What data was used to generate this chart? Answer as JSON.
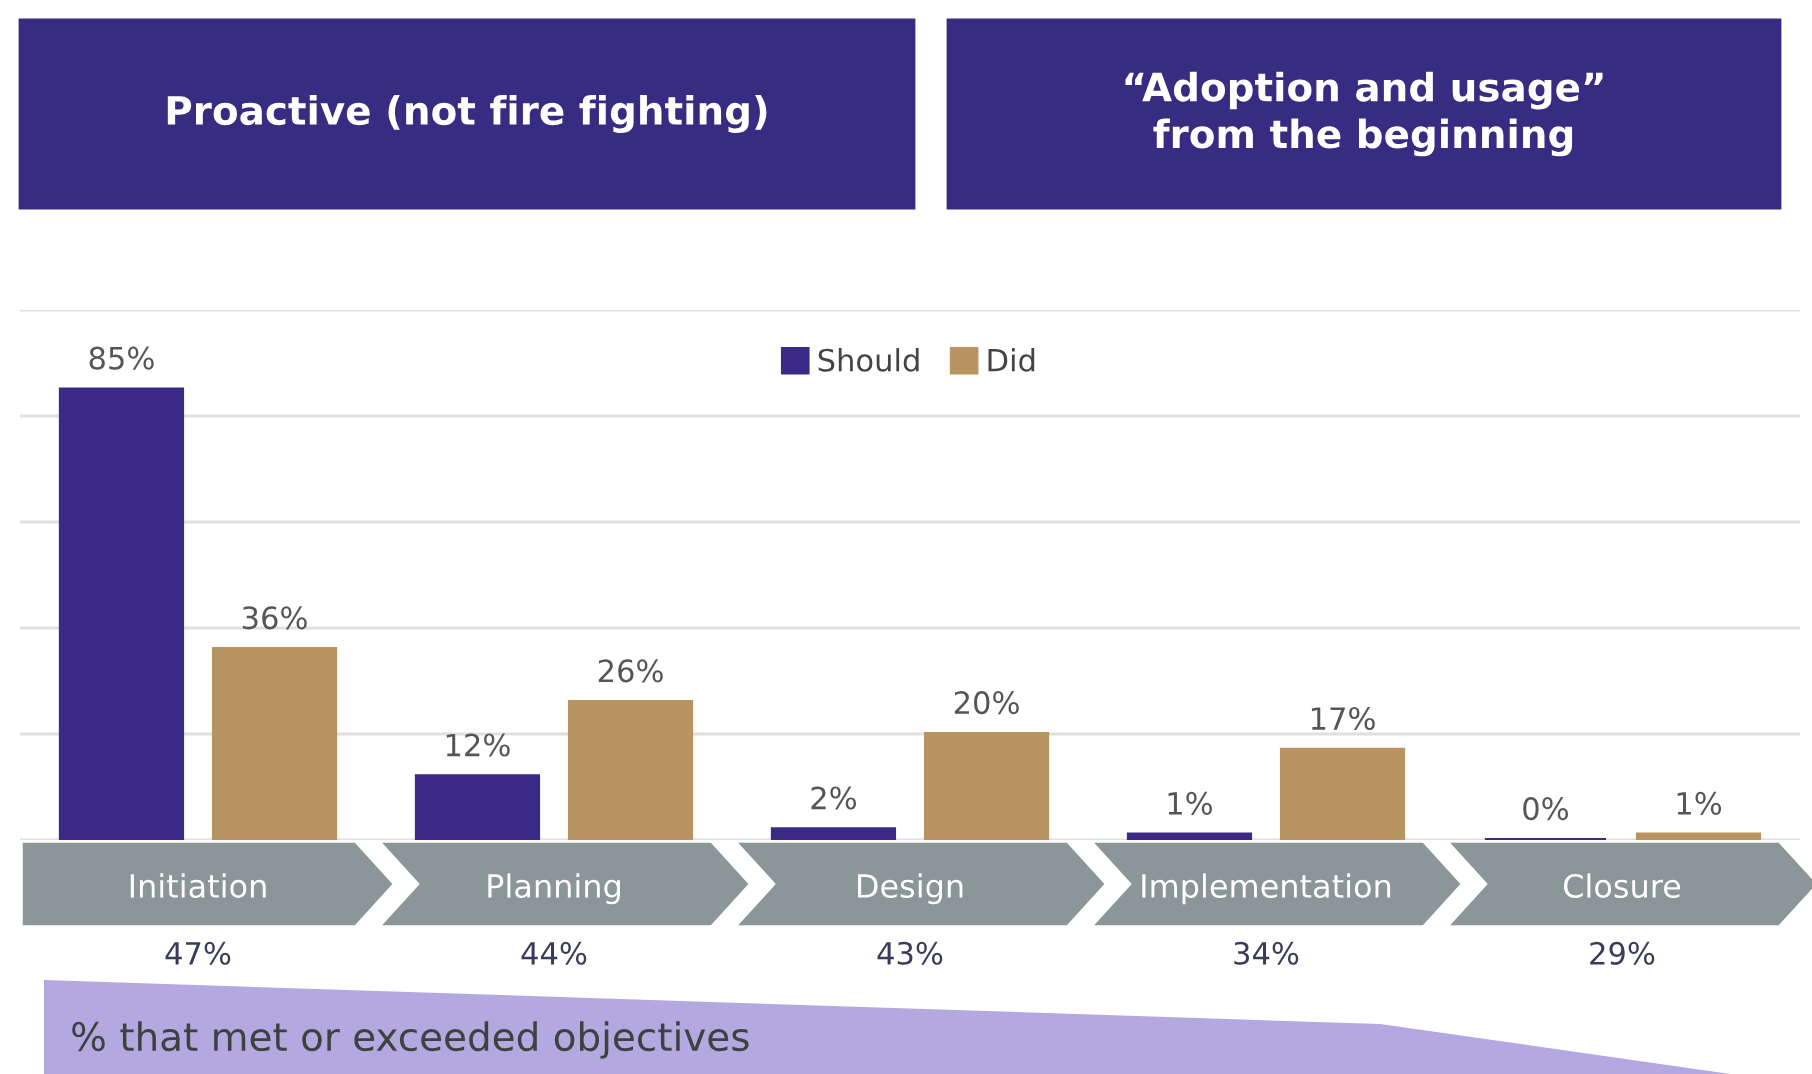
{
  "chart_data": {
    "type": "bar",
    "title": "Proactive (not fire fighting)",
    "subtitle": "“Adoption and usage”\nfrom the beginning",
    "categories": [
      "Initiation",
      "Planning",
      "Design",
      "Implementation",
      "Closure"
    ],
    "series": [
      {
        "name": "Should",
        "color": "#3a2a85",
        "values": [
          85,
          12,
          2,
          1,
          0
        ],
        "value_labels": [
          "85%",
          "12%",
          "2%",
          "1%",
          "0%"
        ]
      },
      {
        "name": "Did",
        "color": "#b89462",
        "values": [
          36,
          26,
          20,
          17,
          1
        ],
        "value_labels": [
          "36%",
          "26%",
          "20%",
          "17%",
          "1%"
        ]
      }
    ],
    "ylim": [
      0,
      100
    ],
    "yticks": [
      {
        "value": 0,
        "label": null
      },
      {
        "value": 20,
        "label": null
      },
      {
        "value": 40,
        "label": null
      },
      {
        "value": 60,
        "label": null
      },
      {
        "value": 80,
        "label": null
      },
      {
        "value": 100,
        "label": null
      }
    ],
    "grid": "y",
    "legend": "top",
    "annotations": [
      "47%",
      "44%",
      "43%",
      "34%",
      "29%",
      "% that met or exceeded objectives"
    ]
  }
}
